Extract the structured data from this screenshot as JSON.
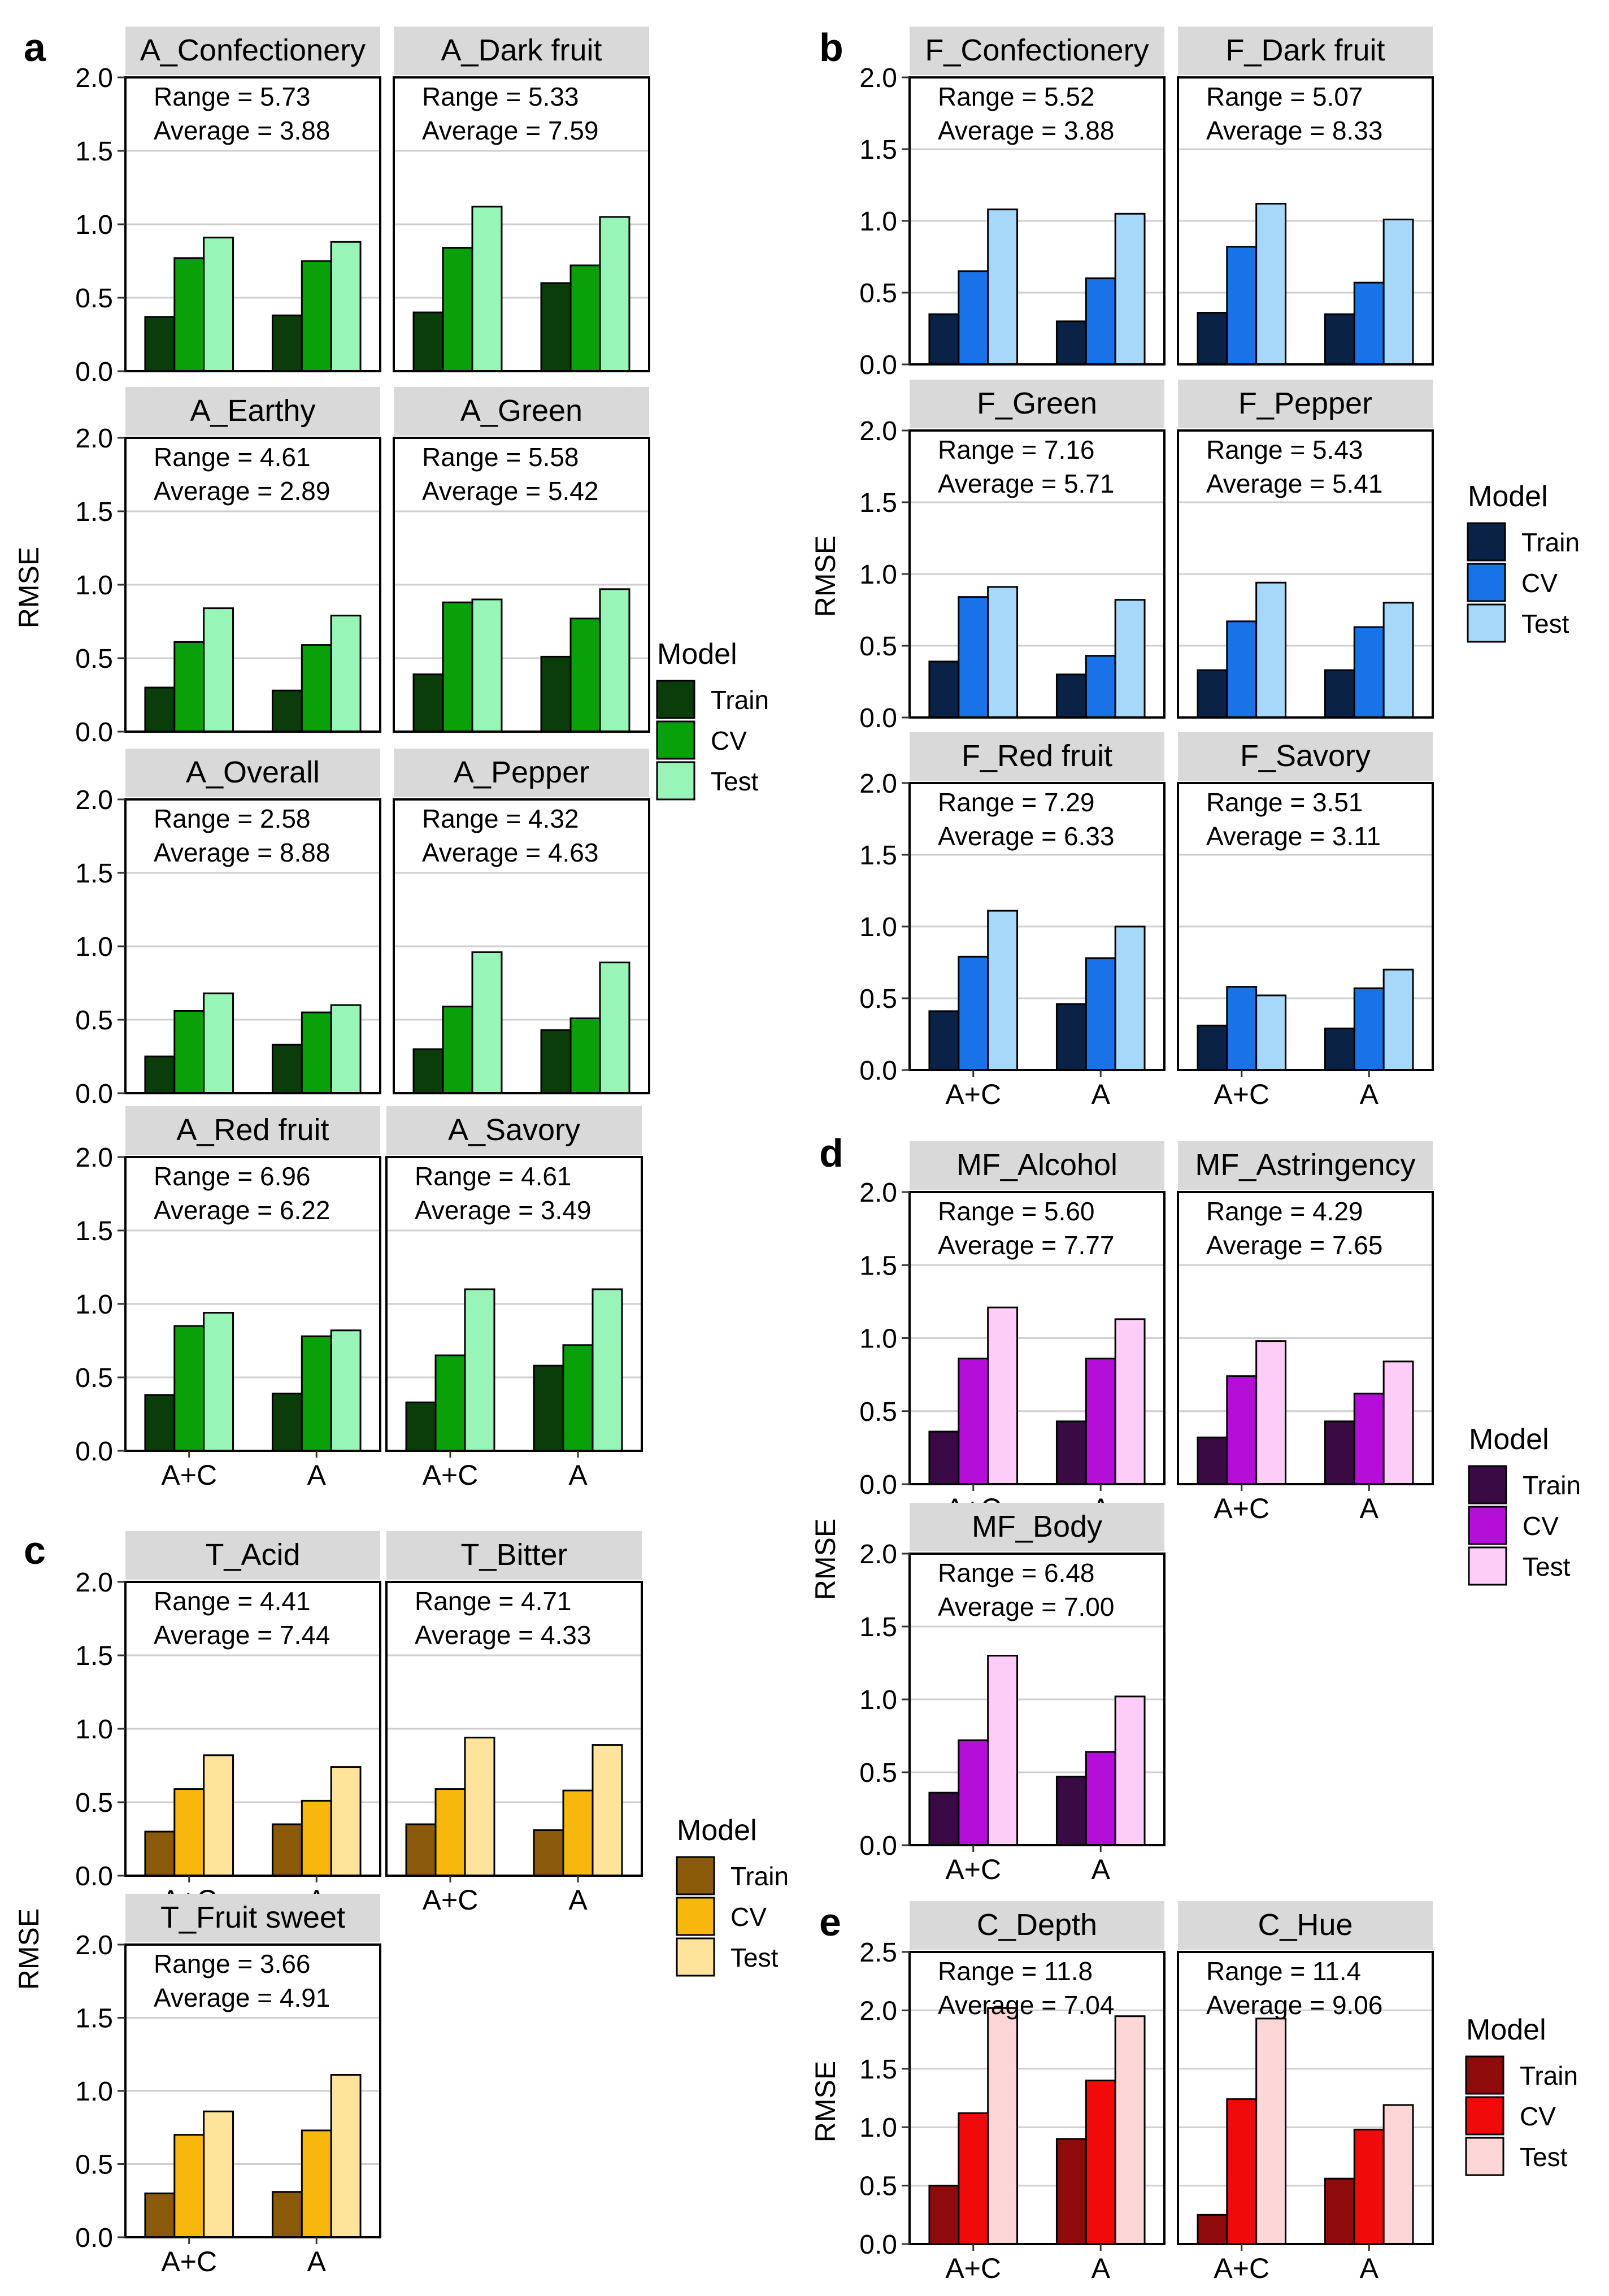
{
  "figure": {
    "stats_labels": {
      "range": "Range = ",
      "average": "Average = "
    },
    "x_categories": [
      "A+C",
      "A"
    ],
    "series_names": [
      "Train",
      "CV",
      "Test"
    ]
  },
  "chart_data": [
    {
      "type": "bar",
      "panel": "a",
      "ylabel": "RMSE",
      "ylim": [
        0,
        2.0
      ],
      "yticks": [
        "0.0",
        "0.5",
        "1.0",
        "1.5",
        "2.0"
      ],
      "legend": {
        "title": "Model",
        "items": [
          "Train",
          "CV",
          "Test"
        ],
        "colors": [
          "#0b3d0b",
          "#0aa00a",
          "#98f5b8"
        ]
      },
      "facets": [
        {
          "title": "A_Confectionery",
          "range": "5.73",
          "average": "3.88",
          "series": [
            {
              "name": "Train",
              "values": [
                0.37,
                0.38
              ]
            },
            {
              "name": "CV",
              "values": [
                0.77,
                0.75
              ]
            },
            {
              "name": "Test",
              "values": [
                0.91,
                0.88
              ]
            }
          ]
        },
        {
          "title": "A_Dark fruit",
          "range": "5.33",
          "average": "7.59",
          "series": [
            {
              "name": "Train",
              "values": [
                0.4,
                0.6
              ]
            },
            {
              "name": "CV",
              "values": [
                0.84,
                0.72
              ]
            },
            {
              "name": "Test",
              "values": [
                1.12,
                1.05
              ]
            }
          ]
        },
        {
          "title": "A_Earthy",
          "range": "4.61",
          "average": "2.89",
          "series": [
            {
              "name": "Train",
              "values": [
                0.3,
                0.28
              ]
            },
            {
              "name": "CV",
              "values": [
                0.61,
                0.59
              ]
            },
            {
              "name": "Test",
              "values": [
                0.84,
                0.79
              ]
            }
          ]
        },
        {
          "title": "A_Green",
          "range": "5.58",
          "average": "5.42",
          "series": [
            {
              "name": "Train",
              "values": [
                0.39,
                0.51
              ]
            },
            {
              "name": "CV",
              "values": [
                0.88,
                0.77
              ]
            },
            {
              "name": "Test",
              "values": [
                0.9,
                0.97
              ]
            }
          ]
        },
        {
          "title": "A_Overall",
          "range": "2.58",
          "average": "8.88",
          "series": [
            {
              "name": "Train",
              "values": [
                0.25,
                0.33
              ]
            },
            {
              "name": "CV",
              "values": [
                0.56,
                0.55
              ]
            },
            {
              "name": "Test",
              "values": [
                0.68,
                0.6
              ]
            }
          ]
        },
        {
          "title": "A_Pepper",
          "range": "4.32",
          "average": "4.63",
          "series": [
            {
              "name": "Train",
              "values": [
                0.3,
                0.43
              ]
            },
            {
              "name": "CV",
              "values": [
                0.59,
                0.51
              ]
            },
            {
              "name": "Test",
              "values": [
                0.96,
                0.89
              ]
            }
          ]
        },
        {
          "title": "A_Red fruit",
          "range": "6.96",
          "average": "6.22",
          "series": [
            {
              "name": "Train",
              "values": [
                0.38,
                0.39
              ]
            },
            {
              "name": "CV",
              "values": [
                0.85,
                0.78
              ]
            },
            {
              "name": "Test",
              "values": [
                0.94,
                0.82
              ]
            }
          ]
        },
        {
          "title": "A_Savory",
          "range": "4.61",
          "average": "3.49",
          "series": [
            {
              "name": "Train",
              "values": [
                0.33,
                0.58
              ]
            },
            {
              "name": "CV",
              "values": [
                0.65,
                0.72
              ]
            },
            {
              "name": "Test",
              "values": [
                1.1,
                1.1
              ]
            }
          ]
        }
      ]
    },
    {
      "type": "bar",
      "panel": "b",
      "ylabel": "RMSE",
      "ylim": [
        0,
        2.0
      ],
      "yticks": [
        "0.0",
        "0.5",
        "1.0",
        "1.5",
        "2.0"
      ],
      "legend": {
        "title": "Model",
        "items": [
          "Train",
          "CV",
          "Test"
        ],
        "colors": [
          "#0a2245",
          "#1a72e8",
          "#a6d8fa"
        ]
      },
      "facets": [
        {
          "title": "F_Confectionery",
          "range": "5.52",
          "average": "3.88",
          "series": [
            {
              "name": "Train",
              "values": [
                0.35,
                0.3
              ]
            },
            {
              "name": "CV",
              "values": [
                0.65,
                0.6
              ]
            },
            {
              "name": "Test",
              "values": [
                1.08,
                1.05
              ]
            }
          ]
        },
        {
          "title": "F_Dark fruit",
          "range": "5.07",
          "average": "8.33",
          "series": [
            {
              "name": "Train",
              "values": [
                0.36,
                0.35
              ]
            },
            {
              "name": "CV",
              "values": [
                0.82,
                0.57
              ]
            },
            {
              "name": "Test",
              "values": [
                1.12,
                1.01
              ]
            }
          ]
        },
        {
          "title": "F_Green",
          "range": "7.16",
          "average": "5.71",
          "series": [
            {
              "name": "Train",
              "values": [
                0.39,
                0.3
              ]
            },
            {
              "name": "CV",
              "values": [
                0.84,
                0.43
              ]
            },
            {
              "name": "Test",
              "values": [
                0.91,
                0.82
              ]
            }
          ]
        },
        {
          "title": "F_Pepper",
          "range": "5.43",
          "average": "5.41",
          "series": [
            {
              "name": "Train",
              "values": [
                0.33,
                0.33
              ]
            },
            {
              "name": "CV",
              "values": [
                0.67,
                0.63
              ]
            },
            {
              "name": "Test",
              "values": [
                0.94,
                0.8
              ]
            }
          ]
        },
        {
          "title": "F_Red fruit",
          "range": "7.29",
          "average": "6.33",
          "series": [
            {
              "name": "Train",
              "values": [
                0.41,
                0.46
              ]
            },
            {
              "name": "CV",
              "values": [
                0.79,
                0.78
              ]
            },
            {
              "name": "Test",
              "values": [
                1.11,
                1.0
              ]
            }
          ]
        },
        {
          "title": "F_Savory",
          "range": "3.51",
          "average": "3.11",
          "series": [
            {
              "name": "Train",
              "values": [
                0.31,
                0.29
              ]
            },
            {
              "name": "CV",
              "values": [
                0.58,
                0.57
              ]
            },
            {
              "name": "Test",
              "values": [
                0.52,
                0.7
              ]
            }
          ]
        }
      ]
    },
    {
      "type": "bar",
      "panel": "c",
      "ylabel": "RMSE",
      "ylim": [
        0,
        2.0
      ],
      "yticks": [
        "0.0",
        "0.5",
        "1.0",
        "1.5",
        "2.0"
      ],
      "legend": {
        "title": "Model",
        "items": [
          "Train",
          "CV",
          "Test"
        ],
        "colors": [
          "#8a5a0a",
          "#f7b70c",
          "#fde49a"
        ]
      },
      "facets": [
        {
          "title": "T_Acid",
          "range": "4.41",
          "average": "7.44",
          "series": [
            {
              "name": "Train",
              "values": [
                0.3,
                0.35
              ]
            },
            {
              "name": "CV",
              "values": [
                0.59,
                0.51
              ]
            },
            {
              "name": "Test",
              "values": [
                0.82,
                0.74
              ]
            }
          ]
        },
        {
          "title": "T_Bitter",
          "range": "4.71",
          "average": "4.33",
          "series": [
            {
              "name": "Train",
              "values": [
                0.35,
                0.31
              ]
            },
            {
              "name": "CV",
              "values": [
                0.59,
                0.58
              ]
            },
            {
              "name": "Test",
              "values": [
                0.94,
                0.89
              ]
            }
          ]
        },
        {
          "title": "T_Fruit sweet",
          "range": "3.66",
          "average": "4.91",
          "series": [
            {
              "name": "Train",
              "values": [
                0.3,
                0.31
              ]
            },
            {
              "name": "CV",
              "values": [
                0.7,
                0.73
              ]
            },
            {
              "name": "Test",
              "values": [
                0.86,
                1.11
              ]
            }
          ]
        }
      ]
    },
    {
      "type": "bar",
      "panel": "d",
      "ylabel": "RMSE",
      "ylim": [
        0,
        2.0
      ],
      "yticks": [
        "0.0",
        "0.5",
        "1.0",
        "1.5",
        "2.0"
      ],
      "legend": {
        "title": "Model",
        "items": [
          "Train",
          "CV",
          "Test"
        ],
        "colors": [
          "#3a0a45",
          "#b40ed8",
          "#fdcdf7"
        ]
      },
      "facets": [
        {
          "title": "MF_Alcohol",
          "range": "5.60",
          "average": "7.77",
          "series": [
            {
              "name": "Train",
              "values": [
                0.36,
                0.43
              ]
            },
            {
              "name": "CV",
              "values": [
                0.86,
                0.86
              ]
            },
            {
              "name": "Test",
              "values": [
                1.21,
                1.13
              ]
            }
          ]
        },
        {
          "title": "MF_Astringency",
          "range": "4.29",
          "average": "7.65",
          "series": [
            {
              "name": "Train",
              "values": [
                0.32,
                0.43
              ]
            },
            {
              "name": "CV",
              "values": [
                0.74,
                0.62
              ]
            },
            {
              "name": "Test",
              "values": [
                0.98,
                0.84
              ]
            }
          ]
        },
        {
          "title": "MF_Body",
          "range": "6.48",
          "average": "7.00",
          "series": [
            {
              "name": "Train",
              "values": [
                0.36,
                0.47
              ]
            },
            {
              "name": "CV",
              "values": [
                0.72,
                0.64
              ]
            },
            {
              "name": "Test",
              "values": [
                1.3,
                1.02
              ]
            }
          ]
        }
      ]
    },
    {
      "type": "bar",
      "panel": "e",
      "ylabel": "RMSE",
      "ylim": [
        0,
        2.5
      ],
      "yticks": [
        "0.0",
        "0.5",
        "1.0",
        "1.5",
        "2.0",
        "2.5"
      ],
      "legend": {
        "title": "Model",
        "items": [
          "Train",
          "CV",
          "Test"
        ],
        "colors": [
          "#8f0a0a",
          "#f00a0a",
          "#fcd6d6"
        ]
      },
      "facets": [
        {
          "title": "C_Depth",
          "range": "11.8",
          "average": "7.04",
          "series": [
            {
              "name": "Train",
              "values": [
                0.5,
                0.9
              ]
            },
            {
              "name": "CV",
              "values": [
                1.12,
                1.4
              ]
            },
            {
              "name": "Test",
              "values": [
                2.02,
                1.95
              ]
            }
          ]
        },
        {
          "title": "C_Hue",
          "range": "11.4",
          "average": "9.06",
          "series": [
            {
              "name": "Train",
              "values": [
                0.25,
                0.56
              ]
            },
            {
              "name": "CV",
              "values": [
                1.24,
                0.98
              ]
            },
            {
              "name": "Test",
              "values": [
                1.93,
                1.19
              ]
            }
          ]
        }
      ]
    }
  ]
}
